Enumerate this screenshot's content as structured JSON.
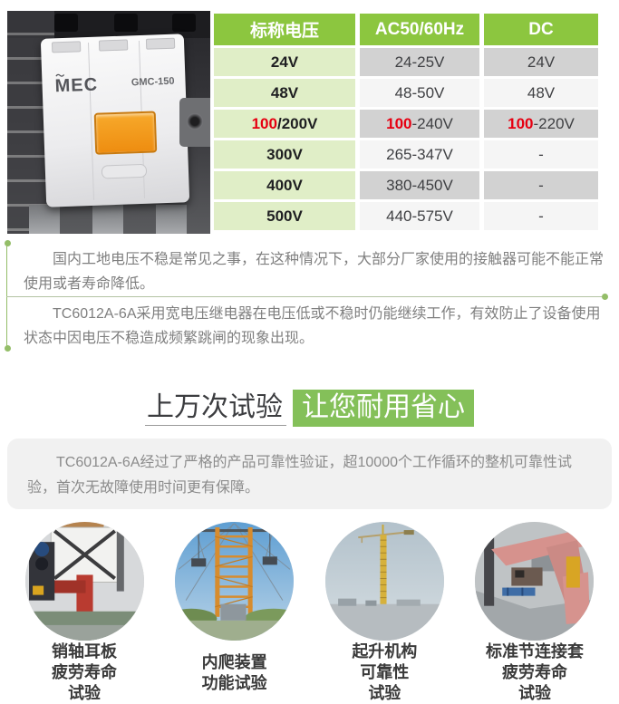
{
  "colors": {
    "header_green": "#8cc63f",
    "cell_green": "#e0eec7",
    "cell_gray": "#d2d2d2",
    "cell_light": "#f5f5f5",
    "red": "#e60012",
    "accent_green": "#84c059",
    "line_green": "#94be68",
    "divider": "#b3c3a3",
    "text_gray": "#7f7f7f",
    "caption_dark": "#3a3a3a",
    "box_bg": "#f1f1f1"
  },
  "product_photo": {
    "brand": "MEC",
    "model": "GMC-150",
    "description_icon": "contactor-product-photo"
  },
  "voltage_table": {
    "headers": [
      "标称电压",
      "AC50/60Hz",
      "DC"
    ],
    "rows": [
      [
        "24V",
        "24-25V",
        "24V"
      ],
      [
        "48V",
        "48-50V",
        "48V"
      ],
      [
        {
          "red": "100",
          "rest": "/200V"
        },
        {
          "red": "100",
          "rest": "-240V"
        },
        {
          "red": "100",
          "rest": "-220V"
        }
      ],
      [
        "300V",
        "265-347V",
        "-"
      ],
      [
        "400V",
        "380-450V",
        "-"
      ],
      [
        "500V",
        "440-575V",
        "-"
      ]
    ]
  },
  "intro": {
    "paragraph1": "国内工地电压不稳是常见之事，在这种情况下，大部分厂家使用的接触器可能不能正常使用或者寿命降低。",
    "paragraph2": "TC6012A-6A采用宽电压继电器在电压低或不稳时仍能继续工作，有效防止了设备使用状态中因电压不稳造成频繁跳闸的现象出现。"
  },
  "reliability": {
    "heading_plain": "上万次试验",
    "heading_highlight": "让您耐用省心",
    "paragraph": "TC6012A-6A经过了严格的产品可靠性验证，超10000个工作循环的整机可靠性试验，首次无故障使用时间更有保障。",
    "tests": [
      {
        "photo": "pin-shaft-ear-plate-photo",
        "caption_lines": [
          "销轴耳板",
          "疲劳寿命",
          "试验"
        ]
      },
      {
        "photo": "internal-climbing-device-photo",
        "caption_lines": [
          "内爬装置",
          "功能试验"
        ]
      },
      {
        "photo": "hoisting-mechanism-photo",
        "caption_lines": [
          "起升机构",
          "可靠性",
          "试验"
        ]
      },
      {
        "photo": "standard-section-sleeve-photo",
        "caption_lines": [
          "标准节连接套",
          "疲劳寿命",
          "试验"
        ]
      }
    ]
  }
}
